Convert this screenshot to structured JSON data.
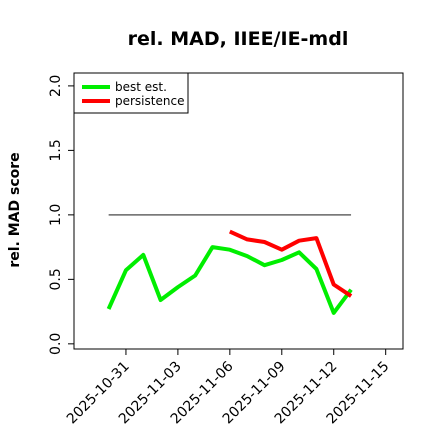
{
  "chart_data": {
    "type": "line",
    "title": "rel. MAD, IIEE/IE-mdl",
    "xlabel": "",
    "ylabel": "rel. MAD score",
    "xlim": [
      "2025-10-28",
      "2025-11-16"
    ],
    "ylim": [
      -0.04,
      2.1
    ],
    "x_ticks": [
      "2025-10-31",
      "2025-11-03",
      "2025-11-06",
      "2025-11-09",
      "2025-11-12",
      "2025-11-15"
    ],
    "y_ticks": [
      "0.0",
      "0.5",
      "1.0",
      "1.5",
      "2.0"
    ],
    "legend_position": "top-left",
    "grid": false,
    "reference_line": {
      "y": 1.0,
      "x_from": "2025-10-30",
      "x_to": "2025-11-13",
      "color": "#666666"
    },
    "series": [
      {
        "name": "best est.",
        "color": "#00ee00",
        "x": [
          "2025-10-30",
          "2025-10-31",
          "2025-11-01",
          "2025-11-02",
          "2025-11-03",
          "2025-11-04",
          "2025-11-05",
          "2025-11-06",
          "2025-11-07",
          "2025-11-08",
          "2025-11-09",
          "2025-11-10",
          "2025-11-11",
          "2025-11-12",
          "2025-11-13"
        ],
        "values": [
          0.27,
          0.57,
          0.69,
          0.34,
          0.44,
          0.53,
          0.75,
          0.73,
          0.68,
          0.61,
          0.65,
          0.71,
          0.58,
          0.24,
          0.42
        ]
      },
      {
        "name": "persistence",
        "color": "#ff0000",
        "x": [
          "2025-11-06",
          "2025-11-07",
          "2025-11-08",
          "2025-11-09",
          "2025-11-10",
          "2025-11-11",
          "2025-11-12",
          "2025-11-13"
        ],
        "values": [
          0.87,
          0.81,
          0.79,
          0.73,
          0.8,
          0.82,
          0.46,
          0.37
        ]
      }
    ]
  }
}
